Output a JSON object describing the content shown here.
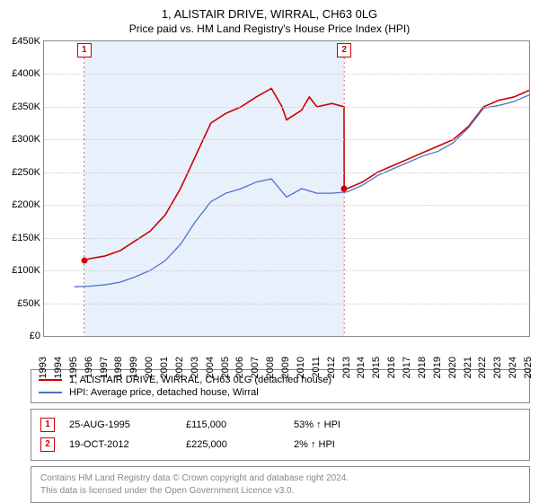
{
  "title": {
    "main": "1, ALISTAIR DRIVE, WIRRAL, CH63 0LG",
    "sub": "Price paid vs. HM Land Registry's House Price Index (HPI)"
  },
  "chart": {
    "type": "line",
    "background_color": "#ffffff",
    "border_color": "#888888",
    "grid_color": "#cccccc",
    "font_size_axis": 11,
    "y": {
      "min": 0,
      "max": 450000,
      "step": 50000,
      "prefix": "£",
      "suffix": "K",
      "divisor": 1000
    },
    "x": {
      "min": 1993,
      "max": 2025,
      "step": 1
    },
    "shade": {
      "from": 1995.65,
      "to": 2012.8,
      "color": "#e8f0fb"
    },
    "markers": [
      {
        "n": "1",
        "x": 1995.65,
        "y_top": true
      },
      {
        "n": "2",
        "x": 2012.8,
        "y_top": true
      }
    ],
    "sale_points": [
      {
        "x": 1995.65,
        "y": 115000,
        "color": "#cc0000"
      },
      {
        "x": 2012.8,
        "y": 225000,
        "color": "#cc0000"
      }
    ],
    "series": [
      {
        "name": "1, ALISTAIR DRIVE, WIRRAL, CH63 0LG (detached house)",
        "color": "#cc0000",
        "line_width": 1.6,
        "points": [
          [
            1995.65,
            115000
          ],
          [
            1996,
            118000
          ],
          [
            1997,
            122000
          ],
          [
            1998,
            130000
          ],
          [
            1999,
            145000
          ],
          [
            2000,
            160000
          ],
          [
            2001,
            185000
          ],
          [
            2002,
            225000
          ],
          [
            2003,
            275000
          ],
          [
            2004,
            325000
          ],
          [
            2005,
            340000
          ],
          [
            2006,
            350000
          ],
          [
            2007,
            365000
          ],
          [
            2008,
            378000
          ],
          [
            2008.7,
            350000
          ],
          [
            2009,
            330000
          ],
          [
            2010,
            345000
          ],
          [
            2010.5,
            365000
          ],
          [
            2011,
            350000
          ],
          [
            2012,
            355000
          ],
          [
            2012.79,
            350000
          ],
          [
            2012.8,
            225000
          ],
          [
            2013,
            225000
          ],
          [
            2014,
            235000
          ],
          [
            2015,
            250000
          ],
          [
            2016,
            260000
          ],
          [
            2017,
            270000
          ],
          [
            2018,
            280000
          ],
          [
            2019,
            290000
          ],
          [
            2020,
            300000
          ],
          [
            2021,
            320000
          ],
          [
            2022,
            350000
          ],
          [
            2023,
            360000
          ],
          [
            2024,
            365000
          ],
          [
            2025,
            375000
          ]
        ]
      },
      {
        "name": "HPI: Average price, detached house, Wirral",
        "color": "#4a74c9",
        "line_width": 1.3,
        "points": [
          [
            1995,
            75000
          ],
          [
            1996,
            76000
          ],
          [
            1997,
            78000
          ],
          [
            1998,
            82000
          ],
          [
            1999,
            90000
          ],
          [
            2000,
            100000
          ],
          [
            2001,
            115000
          ],
          [
            2002,
            140000
          ],
          [
            2003,
            175000
          ],
          [
            2004,
            205000
          ],
          [
            2005,
            218000
          ],
          [
            2006,
            225000
          ],
          [
            2007,
            235000
          ],
          [
            2008,
            240000
          ],
          [
            2009,
            212000
          ],
          [
            2010,
            225000
          ],
          [
            2011,
            218000
          ],
          [
            2012,
            218000
          ],
          [
            2013,
            220000
          ],
          [
            2014,
            230000
          ],
          [
            2015,
            245000
          ],
          [
            2016,
            255000
          ],
          [
            2017,
            265000
          ],
          [
            2018,
            275000
          ],
          [
            2019,
            282000
          ],
          [
            2020,
            295000
          ],
          [
            2021,
            318000
          ],
          [
            2022,
            348000
          ],
          [
            2023,
            352000
          ],
          [
            2024,
            358000
          ],
          [
            2025,
            368000
          ]
        ]
      }
    ]
  },
  "legend": [
    {
      "color": "#cc0000",
      "label": "1, ALISTAIR DRIVE, WIRRAL, CH63 0LG (detached house)"
    },
    {
      "color": "#4a74c9",
      "label": "HPI: Average price, detached house, Wirral"
    }
  ],
  "sales": [
    {
      "n": "1",
      "date": "25-AUG-1995",
      "price": "£115,000",
      "delta": "53% ↑ HPI"
    },
    {
      "n": "2",
      "date": "19-OCT-2012",
      "price": "£225,000",
      "delta": "2% ↑ HPI"
    }
  ],
  "footer": {
    "line1": "Contains HM Land Registry data © Crown copyright and database right 2024.",
    "line2": "This data is licensed under the Open Government Licence v3.0."
  }
}
